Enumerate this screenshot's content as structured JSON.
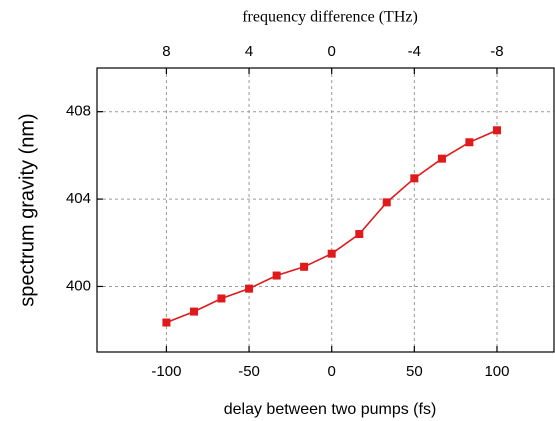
{
  "chart_data": {
    "type": "line",
    "title": "frequency difference (THz)",
    "xlabel": "delay between two pumps (fs)",
    "ylabel": "spectrum gravity  (nm)",
    "x": [
      -100,
      -83.3,
      -66.7,
      -50,
      -33.3,
      -16.7,
      0,
      16.7,
      33.3,
      50,
      66.7,
      83.3,
      100
    ],
    "series": [
      {
        "name": "spectrum gravity",
        "color": "#e0191b",
        "values": [
          398.35,
          398.85,
          399.45,
          399.9,
          400.5,
          400.9,
          401.5,
          402.4,
          403.85,
          404.95,
          405.85,
          406.6,
          407.15
        ]
      }
    ],
    "xlim": [
      -142,
      134.5
    ],
    "xticks": [
      -100,
      -50,
      0,
      50,
      100
    ],
    "x2lim": [
      11.36,
      -10.76
    ],
    "x2ticks": [
      8,
      4,
      0,
      -4,
      -8
    ],
    "ylim": [
      397,
      410
    ],
    "yticks": [
      400,
      404,
      408
    ],
    "grid": true
  }
}
